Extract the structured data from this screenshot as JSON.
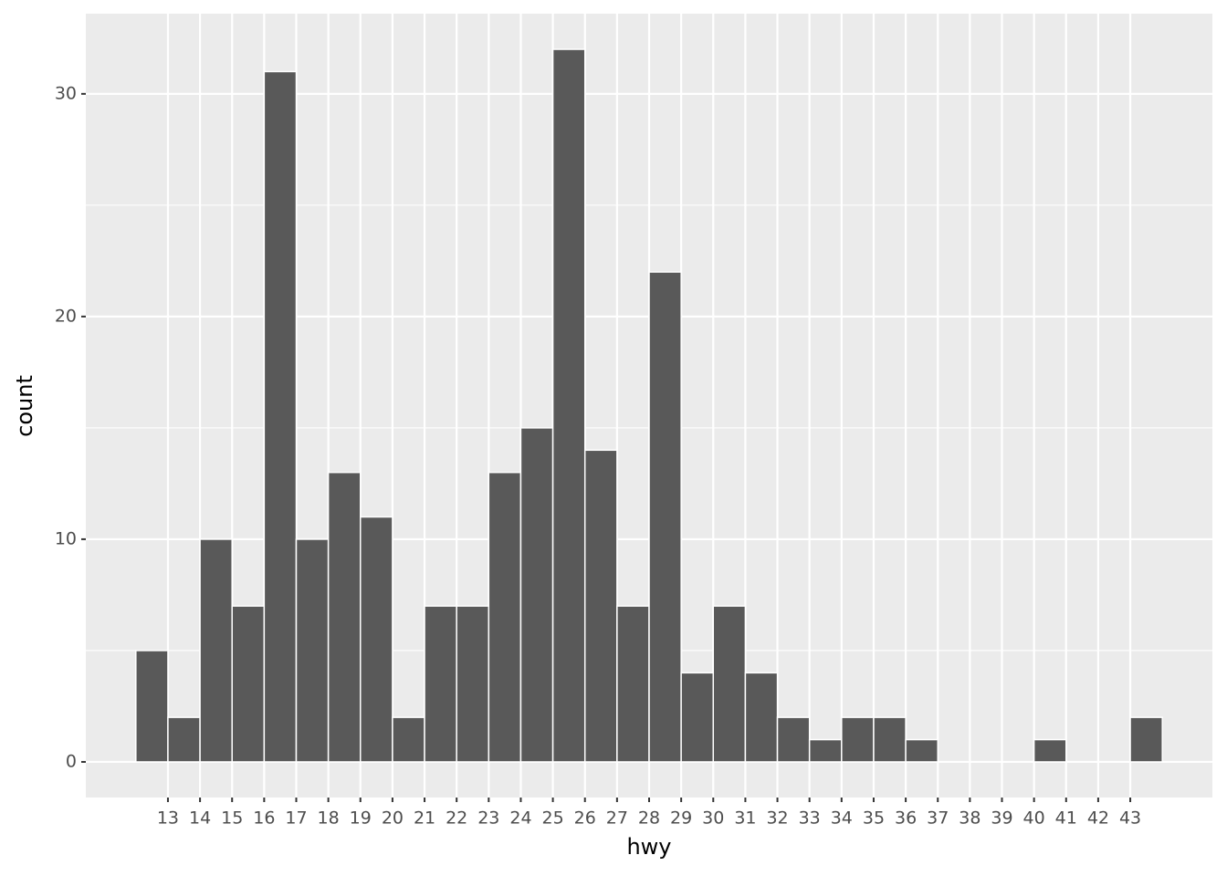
{
  "chart_data": {
    "type": "histogram",
    "x_label": "hwy",
    "y_label": "count",
    "bins": [
      12,
      13,
      14,
      15,
      16,
      17,
      18,
      19,
      20,
      21,
      22,
      23,
      24,
      25,
      26,
      27,
      28,
      29,
      30,
      31,
      32,
      33,
      34,
      35,
      36,
      37,
      38,
      39,
      40,
      41,
      42,
      43,
      44
    ],
    "values": [
      5,
      2,
      10,
      7,
      31,
      10,
      13,
      11,
      2,
      7,
      7,
      13,
      15,
      32,
      14,
      7,
      22,
      4,
      7,
      4,
      2,
      1,
      2,
      2,
      1,
      0,
      0,
      0,
      1,
      0,
      0,
      2
    ],
    "color": "#595959",
    "edge_color": "#ffffff",
    "xlim": [
      10.44,
      45.56
    ],
    "xticks": [
      13,
      14,
      15,
      16,
      17,
      18,
      19,
      20,
      21,
      22,
      23,
      24,
      25,
      26,
      27,
      28,
      29,
      30,
      31,
      32,
      33,
      34,
      35,
      36,
      37,
      38,
      39,
      40,
      41,
      42,
      43
    ],
    "ylim": [
      -1.6,
      33.6
    ],
    "yticks": [
      0,
      10,
      20,
      30
    ],
    "grid": true
  }
}
